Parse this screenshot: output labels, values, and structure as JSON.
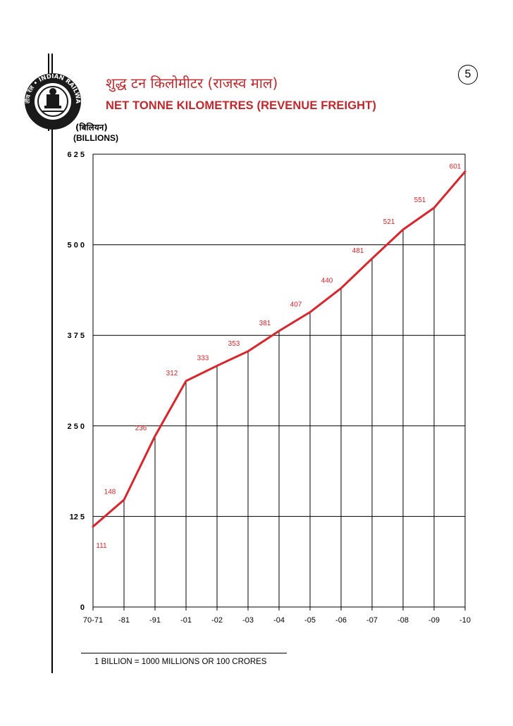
{
  "page": {
    "page_number": "5",
    "title_hindi": "शुद्ध टन किलोमीटर (राजस्व माल)",
    "title_english": "NET TONNE KILOMETRES (REVENUE FREIGHT)",
    "unit_hindi": "(बिलियन)",
    "unit_english": "(BILLIONS)",
    "footnote": "1 BILLION = 1000 MILLIONS OR 100 CRORES",
    "logo_text": "भारतीय रेल • INDIAN RAILWAYS"
  },
  "colors": {
    "accent": "#d7262c",
    "grid": "#000000"
  },
  "chart_data": {
    "type": "line",
    "categories": [
      "70-71",
      "-81",
      "-91",
      "-01",
      "-02",
      "-03",
      "-04",
      "-05",
      "-06",
      "-07",
      "-08",
      "-09",
      "-10"
    ],
    "values": [
      111,
      148,
      236,
      312,
      333,
      353,
      381,
      407,
      440,
      481,
      521,
      551,
      601
    ],
    "y_ticks": [
      "0",
      "12 5",
      "2 5 0",
      "3 7 5",
      "5 0 0",
      "6 2 5"
    ],
    "ylim": [
      0,
      625
    ],
    "grid": true,
    "data_labels": true
  }
}
